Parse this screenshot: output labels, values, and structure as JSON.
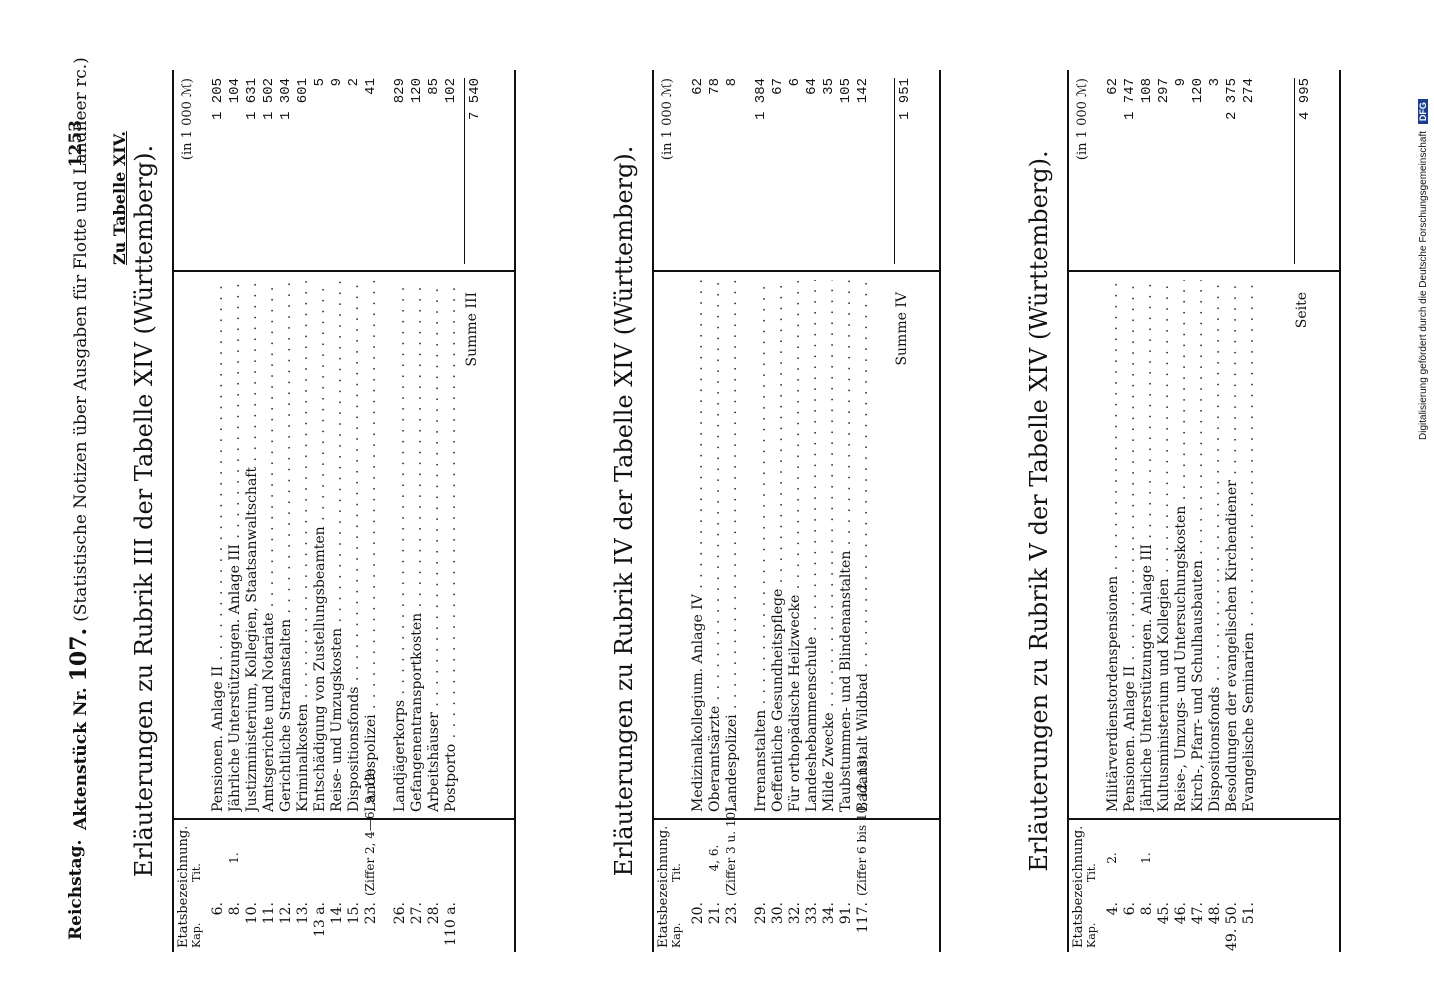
{
  "header": {
    "left": "Reichstag.",
    "center_prefix": "Aktenstück Nr.",
    "center_number": "107.",
    "center_rest": "(Statistische Notizen über Ausgaben für Flotte und Landheer rc.)",
    "page_number": "1253"
  },
  "zu_tabelle": "Zu Tabelle XIV.",
  "column_headers": {
    "etatsbezeichnung": "Etatsbezeichnung.",
    "kap": "Kap.",
    "tit": "Tit.",
    "unit": "(in 1 000 ℳ)"
  },
  "sections": [
    {
      "title": "Erläuterungen zu Rubrik III der Tabelle XIV (Württemberg).",
      "rows": [
        {
          "kap": "6.",
          "tit": "",
          "label": "Pensionen.  Anlage II",
          "value": "1 205"
        },
        {
          "kap": "8.",
          "tit": "1.",
          "label": "Jährliche Unterstützungen.  Anlage III",
          "value": "104"
        },
        {
          "kap": "10.",
          "tit": "",
          "label": "Justizministerium, Kollegien, Staatsanwaltschaft",
          "value": "1 631"
        },
        {
          "kap": "11.",
          "tit": "",
          "label": "Amtsgerichte und Notariate",
          "value": "1 502"
        },
        {
          "kap": "12.",
          "tit": "",
          "label": "Gerichtliche Strafanstalten",
          "value": "1 304"
        },
        {
          "kap": "13.",
          "tit": "",
          "label": "Kriminalkosten",
          "value": "601"
        },
        {
          "kap": "13 a.",
          "tit": "",
          "label": "Entschädigung von Zustellungsbeamten",
          "value": "5"
        },
        {
          "kap": "14.",
          "tit": "",
          "label": "Reise- und Umzugskosten",
          "value": "9"
        },
        {
          "kap": "15.",
          "tit": "",
          "label": "Dispositionsfonds",
          "value": "2"
        },
        {
          "kap": "23.",
          "tit": "(Ziffer 2, 4—6, 9, 12).",
          "label": "Landespolizei",
          "value": "41"
        },
        {
          "kap": "26.",
          "tit": "",
          "label": "Landjägerkorps",
          "value": "829"
        },
        {
          "kap": "27.",
          "tit": "",
          "label": "Gefangenentransportkosten",
          "value": "120"
        },
        {
          "kap": "28.",
          "tit": "",
          "label": "Arbeitshäuser",
          "value": "85"
        },
        {
          "kap": "110 a.",
          "tit": "",
          "label": "Postporto",
          "value": "102"
        }
      ],
      "sum_label": "Summe III",
      "sum_value": "7 540"
    },
    {
      "title": "Erläuterungen zu Rubrik IV der Tabelle XIV (Württemberg).",
      "rows": [
        {
          "kap": "20.",
          "tit": "",
          "label": "Medizinalkollegium.  Anlage IV",
          "value": "62"
        },
        {
          "kap": "21.",
          "tit": "4, 6.",
          "label": "Oberamtsärzte",
          "value": "78"
        },
        {
          "kap": "23.",
          "tit": "(Ziffer 3 u. 10).",
          "label": "Landespolizei",
          "value": "8"
        },
        {
          "kap": "29.",
          "tit": "",
          "label": "Irrenanstalten",
          "value": "1 384"
        },
        {
          "kap": "30.",
          "tit": "",
          "label": "Oeffentliche Gesundheitspflege",
          "value": "67"
        },
        {
          "kap": "32.",
          "tit": "",
          "label": "Für orthopädische Heilzwecke",
          "value": "6"
        },
        {
          "kap": "33.",
          "tit": "",
          "label": "Landeshebammenschule",
          "value": "64"
        },
        {
          "kap": "34.",
          "tit": "",
          "label": "Milde Zwecke",
          "value": "35"
        },
        {
          "kap": "91.",
          "tit": "",
          "label": "Taubstummen- und Blindenanstalten",
          "value": "105"
        },
        {
          "kap": "117.",
          "tit": "(Ziffer 6 bis 10, 12, 13).",
          "label": "Badanstalt Wildbad",
          "value": "142"
        }
      ],
      "sum_label": "Summe IV",
      "sum_value": "1 951"
    },
    {
      "title": "Erläuterungen zu Rubrik V der Tabelle XIV (Württemberg).",
      "rows": [
        {
          "kap": "4.",
          "tit": "2.",
          "label": "Militärverdienstordenspensionen",
          "value": "62"
        },
        {
          "kap": "6.",
          "tit": "",
          "label": "Pensionen.  Anlage II",
          "value": "1 747"
        },
        {
          "kap": "8.",
          "tit": "1.",
          "label": "Jährliche Unterstützungen.  Anlage III",
          "value": "108"
        },
        {
          "kap": "45.",
          "tit": "",
          "label": "Kultusministerium und Kollegien",
          "value": "297"
        },
        {
          "kap": "46.",
          "tit": "",
          "label": "Reise-, Umzugs- und Untersuchungskosten",
          "value": "9"
        },
        {
          "kap": "47.",
          "tit": "",
          "label": "Kirch-, Pfarr- und Schulhausbauten",
          "value": "120"
        },
        {
          "kap": "48.",
          "tit": "",
          "label": "Dispositionsfonds",
          "value": "3"
        },
        {
          "kap": "49. 50.",
          "tit": "",
          "label": "Besoldungen der evangelischen Kirchendiener",
          "value": "2 375"
        },
        {
          "kap": "51.",
          "tit": "",
          "label": "Evangelische Seminarien",
          "value": "274"
        }
      ],
      "sum_label": "Seite",
      "sum_value": "4 995"
    }
  ],
  "side_note": "Digitalisierung gefördert durch die Deutsche Forschungsgemeinschaft",
  "dfg_logo": "DFG"
}
